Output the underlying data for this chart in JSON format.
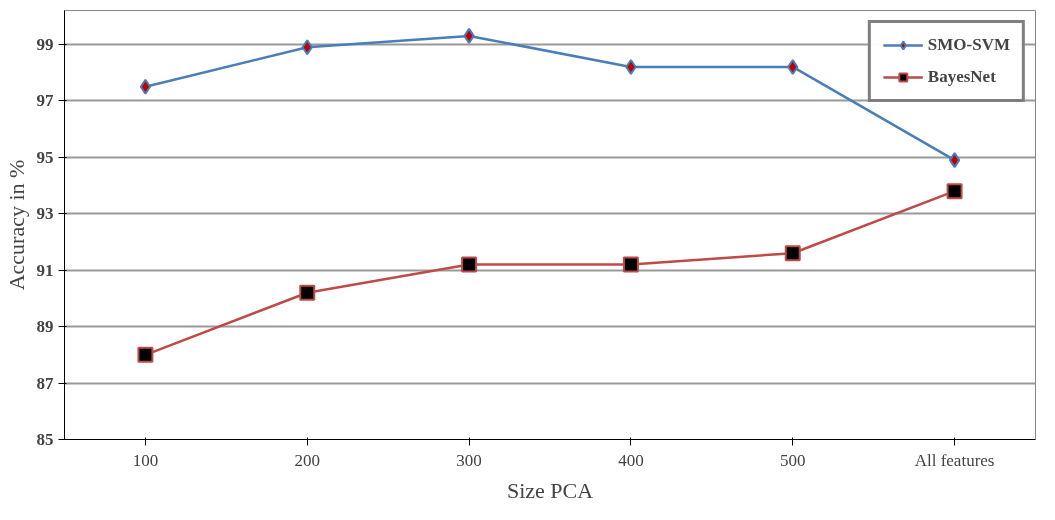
{
  "chart_data": {
    "type": "line",
    "xlabel": "Size PCA",
    "ylabel": "Accuracy in %",
    "categories": [
      "100",
      "200",
      "300",
      "400",
      "500",
      "All features"
    ],
    "series": [
      {
        "name": "SMO-SVM",
        "color": "#4a7ebb",
        "marker": "diamond",
        "values": [
          97.5,
          98.9,
          99.3,
          98.2,
          98.2,
          94.9
        ]
      },
      {
        "name": "BayesNet",
        "color": "#be4b48",
        "marker": "square",
        "values": [
          88.0,
          90.2,
          91.2,
          91.2,
          91.6,
          93.8
        ]
      }
    ],
    "ylim": [
      85,
      100.2
    ],
    "yticks": [
      85,
      87,
      89,
      91,
      93,
      95,
      97,
      99
    ],
    "grid": "y",
    "legend": "top right",
    "line_style": "solid"
  }
}
